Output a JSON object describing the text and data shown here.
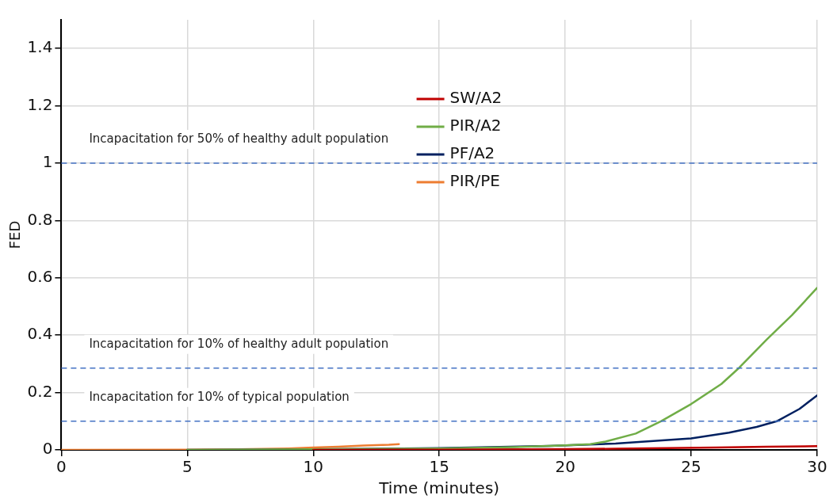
{
  "chart_data": {
    "type": "line",
    "xlabel": "Time (minutes)",
    "ylabel": "FED",
    "xlim": [
      0,
      30
    ],
    "xticks": [
      0,
      5,
      10,
      15,
      20,
      25,
      30
    ],
    "ylim": [
      0,
      1.5
    ],
    "yticks": [
      0,
      0.2,
      0.4,
      0.6,
      0.8,
      1,
      1.2,
      1.4
    ],
    "grid": true,
    "legend": "top",
    "marker": "none",
    "line_style": "solid",
    "series": [
      {
        "name": "SW/A2",
        "color": "#c00000",
        "x": [
          10,
          15,
          20,
          22,
          24,
          26,
          28,
          30
        ],
        "values": [
          0,
          0.001,
          0.003,
          0.004,
          0.006,
          0.008,
          0.011,
          0.013
        ]
      },
      {
        "name": "PIR/A2",
        "color": "#70ad47",
        "x": [
          5,
          10,
          15,
          18,
          20,
          21,
          21.6,
          22.8,
          23.8,
          25,
          26.2,
          26.9,
          28,
          29,
          30
        ],
        "values": [
          0,
          0.002,
          0.005,
          0.01,
          0.016,
          0.02,
          0.029,
          0.057,
          0.1,
          0.16,
          0.23,
          0.286,
          0.385,
          0.47,
          0.565
        ]
      },
      {
        "name": "PF/A2",
        "color": "#002060",
        "x": [
          5,
          10,
          15,
          19.4,
          22,
          25,
          26.5,
          27.6,
          28.4,
          29.3,
          30
        ],
        "values": [
          0,
          0.002,
          0.006,
          0.014,
          0.022,
          0.04,
          0.06,
          0.08,
          0.1,
          0.143,
          0.19
        ]
      },
      {
        "name": "PIR/PE",
        "color": "#ed7d31",
        "x": [
          0,
          5,
          7,
          9,
          10,
          11,
          12,
          13,
          13.4
        ],
        "values": [
          0,
          0.001,
          0.002,
          0.005,
          0.008,
          0.011,
          0.015,
          0.018,
          0.02
        ]
      }
    ],
    "ref_lines": [
      {
        "axis": "y",
        "value": 1,
        "label": "Incapacitation for 50% of healthy adult population",
        "color": "#4472c4",
        "line_style": "dashed"
      },
      {
        "axis": "y",
        "value": 0.285,
        "label": "Incapacitation for 10% of healthy adult population",
        "color": "#4472c4",
        "line_style": "dashed"
      },
      {
        "axis": "y",
        "value": 0.1,
        "label": "Incapacitation for 10% of typical population",
        "color": "#4472c4",
        "line_style": "dashed"
      }
    ]
  }
}
